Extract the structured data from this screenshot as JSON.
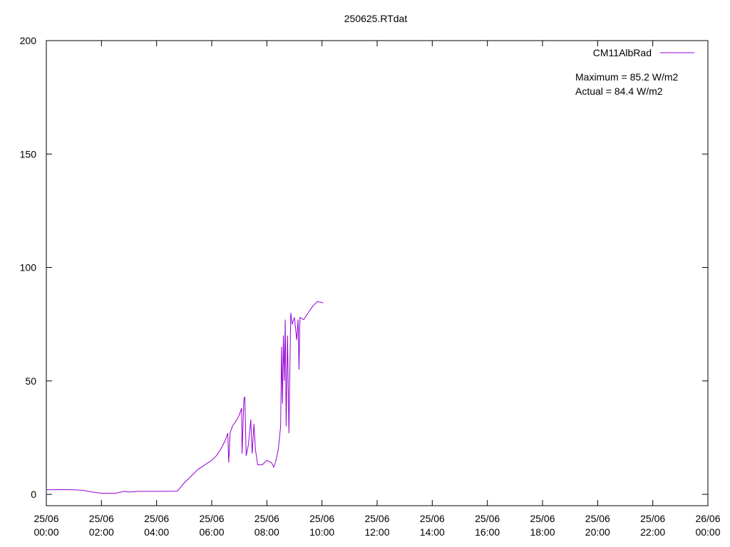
{
  "chart_data": {
    "type": "line",
    "title": "250625.RTdat",
    "x": [
      "25/06 00:00",
      "25/06 00:30",
      "25/06 01:00",
      "25/06 01:20",
      "25/06 01:40",
      "25/06 02:00",
      "25/06 02:30",
      "25/06 02:50",
      "25/06 03:00",
      "25/06 03:20",
      "25/06 04:00",
      "25/06 04:45",
      "25/06 05:00",
      "25/06 05:15",
      "25/06 05:30",
      "25/06 05:45",
      "25/06 06:00",
      "25/06 06:10",
      "25/06 06:20",
      "25/06 06:30",
      "25/06 06:35",
      "25/06 06:37",
      "25/06 06:40",
      "25/06 06:45",
      "25/06 06:55",
      "25/06 07:00",
      "25/06 07:05",
      "25/06 07:06",
      "25/06 07:10",
      "25/06 07:12",
      "25/06 07:15",
      "25/06 07:20",
      "25/06 07:25",
      "25/06 07:28",
      "25/06 07:32",
      "25/06 07:35",
      "25/06 07:40",
      "25/06 07:50",
      "25/06 08:00",
      "25/06 08:10",
      "25/06 08:15",
      "25/06 08:20",
      "25/06 08:25",
      "25/06 08:30",
      "25/06 08:32",
      "25/06 08:34",
      "25/06 08:36",
      "25/06 08:38",
      "25/06 08:40",
      "25/06 08:42",
      "25/06 08:45",
      "25/06 08:48",
      "25/06 08:52",
      "25/06 08:55",
      "25/06 09:00",
      "25/06 09:05",
      "25/06 09:08",
      "25/06 09:10",
      "25/06 09:12",
      "25/06 09:20",
      "25/06 09:30",
      "25/06 09:40",
      "25/06 09:50",
      "25/06 10:03"
    ],
    "series": [
      {
        "name": "CM11AlbRad",
        "color": "#9400d3",
        "values": [
          2.0,
          2.1,
          2.0,
          1.8,
          1.0,
          0.5,
          0.5,
          1.3,
          1.0,
          1.3,
          1.3,
          1.4,
          5,
          8,
          11,
          13,
          15,
          17,
          20,
          24,
          27,
          14,
          27,
          30,
          33,
          35,
          38,
          18,
          42,
          43,
          17,
          22,
          33,
          18,
          31,
          20,
          13,
          13,
          15,
          14,
          12,
          15,
          20,
          30,
          65,
          40,
          70,
          50,
          77,
          30,
          70,
          27,
          80,
          75,
          78,
          68,
          77,
          55,
          78,
          77,
          80,
          83,
          85,
          84.4
        ]
      }
    ],
    "annotations": [
      "Maximum = 85.2 W/m2",
      "Actual = 84.4 W/m2"
    ],
    "xlim": [
      "25/06 00:00",
      "26/06 00:00"
    ],
    "xticks": [
      "25/06 00:00",
      "25/06 02:00",
      "25/06 04:00",
      "25/06 06:00",
      "25/06 08:00",
      "25/06 10:00",
      "25/06 12:00",
      "25/06 14:00",
      "25/06 16:00",
      "25/06 18:00",
      "25/06 20:00",
      "25/06 22:00",
      "26/06 00:00"
    ],
    "ylim": [
      -5,
      200
    ],
    "yticks": [
      0,
      50,
      100,
      150,
      200
    ],
    "grid": false,
    "legend": "top-right"
  }
}
